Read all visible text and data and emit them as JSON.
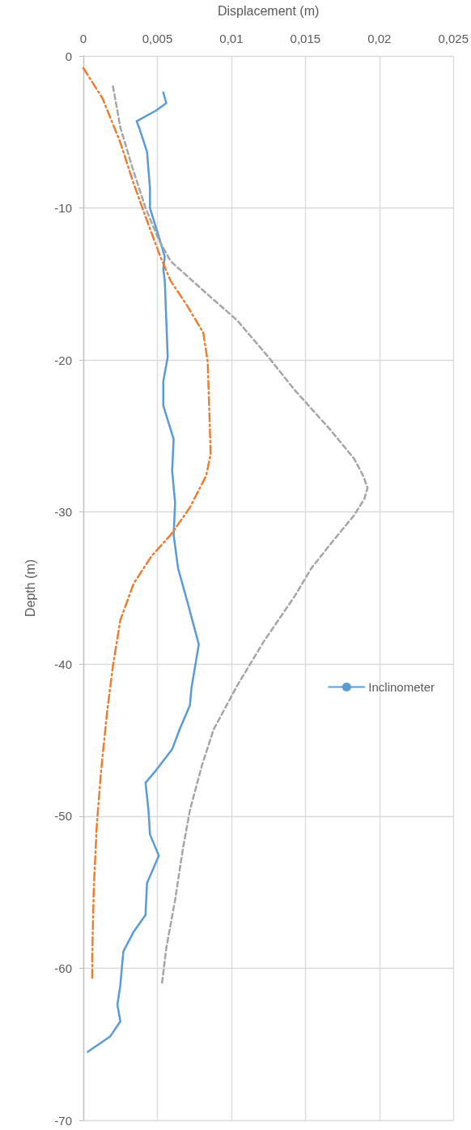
{
  "chart_data": {
    "type": "line",
    "xlabel": "Displacement (m)",
    "ylabel": "Depth (m)",
    "xlim": [
      0,
      0.025
    ],
    "xticks": [
      0,
      {
        "value": 0.005,
        "label": "0,005"
      },
      {
        "value": 0.01,
        "label": "0,01"
      },
      {
        "value": 0.015,
        "label": "0,015"
      },
      {
        "value": 0.02,
        "label": "0,02"
      },
      {
        "value": 0.025,
        "label": "0,025"
      }
    ],
    "ylim": [
      -70,
      0
    ],
    "yticks": [
      -70,
      -60,
      -50,
      -40,
      -30,
      -20,
      -10,
      0
    ],
    "grid": true,
    "legend": "right",
    "marker": "none",
    "series": [
      {
        "name": "Inclinometer",
        "color": "#5b9bd5",
        "line_style": "solid",
        "x": [
          0.0054,
          0.0056,
          0.0049,
          0.0036,
          0.0038,
          0.0043,
          0.0045,
          0.0045,
          0.0051,
          0.0055,
          0.0054,
          0.0055,
          0.0057,
          0.0054,
          0.0054,
          0.0061,
          0.006,
          0.0062,
          0.0061,
          0.0064,
          0.007,
          0.0078,
          0.0073,
          0.0072,
          0.0065,
          0.006,
          0.0049,
          0.0042,
          0.0044,
          0.0045,
          0.0051,
          0.0043,
          0.0042,
          0.0034,
          0.0027,
          0.0025,
          0.0023,
          0.0025,
          0.0018,
          0.0003
        ],
        "values": [
          -2.4,
          -3.1,
          -3.6,
          -4.3,
          -4.8,
          -6.3,
          -8.7,
          -10,
          -11.9,
          -13.2,
          -14,
          -14.8,
          -19.8,
          -21.4,
          -23,
          -25.2,
          -27.3,
          -29.4,
          -31.5,
          -33.7,
          -35.8,
          -38.7,
          -41.6,
          -42.7,
          -44.3,
          -45.6,
          -47,
          -47.8,
          -49.6,
          -51.2,
          -52.6,
          -54.4,
          -56.5,
          -57.6,
          -58.9,
          -61.1,
          -62.4,
          -63.5,
          -64.5,
          -65.5
        ]
      },
      {
        "color": "#ed7d31",
        "line_style": "dashed",
        "x": [
          0,
          0.0013,
          0.0025,
          0.0034,
          0.0044,
          0.0052,
          0.0059,
          0.007,
          0.0081,
          0.0084,
          0.0085,
          0.0086,
          0.0083,
          0.0072,
          0.0059,
          0.0046,
          0.0034,
          0.0025,
          0.002,
          0.0016,
          0.0012,
          0.0009,
          0.0007,
          0.0006,
          0.0006
        ],
        "values": [
          -0.8,
          -2.8,
          -5.7,
          -8.4,
          -11.1,
          -13.2,
          -14.8,
          -16.4,
          -18.2,
          -20.1,
          -23,
          -26.2,
          -27.6,
          -29.7,
          -31.5,
          -32.9,
          -34.7,
          -37.1,
          -40.1,
          -43.2,
          -47,
          -50.7,
          -54.9,
          -59.2,
          -60.8
        ]
      },
      {
        "color": "#a5a5a5",
        "line_style": "dotted",
        "x": [
          0.002,
          0.0025,
          0.0033,
          0.0042,
          0.0051,
          0.0059,
          0.0083,
          0.0104,
          0.0125,
          0.0143,
          0.0167,
          0.0183,
          0.0189,
          0.0192,
          0.019,
          0.0183,
          0.0167,
          0.0154,
          0.0143,
          0.0122,
          0.0104,
          0.0088,
          0.008,
          0.0072,
          0.0067,
          0.0062,
          0.0056,
          0.0053
        ],
        "values": [
          -2,
          -4.7,
          -7.3,
          -10,
          -12.1,
          -13.5,
          -15.6,
          -17.4,
          -19.8,
          -22,
          -24.6,
          -26.5,
          -27.6,
          -28.4,
          -29.1,
          -30.2,
          -32.1,
          -33.7,
          -35.5,
          -38.5,
          -41.4,
          -44.3,
          -46.7,
          -49.6,
          -52.3,
          -55.5,
          -58.7,
          -61.1
        ]
      }
    ]
  }
}
